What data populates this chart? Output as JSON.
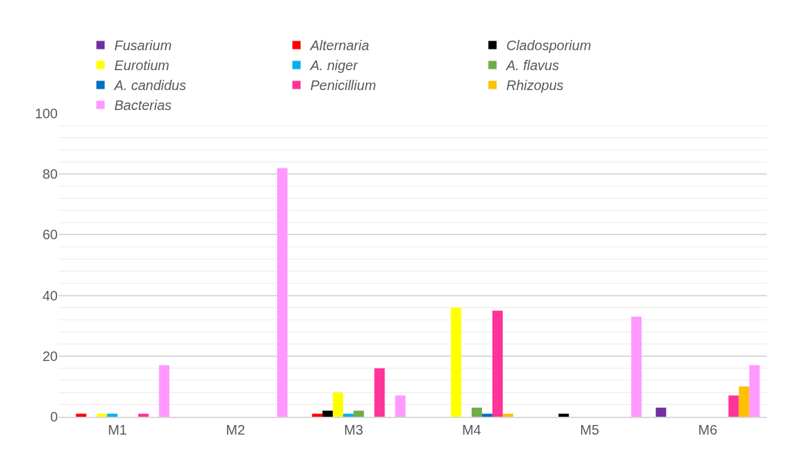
{
  "chart_data": {
    "type": "bar",
    "categories": [
      "M1",
      "M2",
      "M3",
      "M4",
      "M5",
      "M6"
    ],
    "series": [
      {
        "name": "Fusarium",
        "color": "#7030a0",
        "values": [
          0,
          0,
          0,
          0,
          0,
          3
        ]
      },
      {
        "name": "Alternaria",
        "color": "#ff0000",
        "values": [
          1,
          0,
          1,
          0,
          0,
          0
        ]
      },
      {
        "name": "Cladosporium",
        "color": "#000000",
        "values": [
          0,
          0,
          2,
          0,
          1,
          0
        ]
      },
      {
        "name": "Eurotium",
        "color": "#ffff00",
        "values": [
          1,
          0,
          8,
          36,
          0,
          0
        ]
      },
      {
        "name": "A. niger",
        "color": "#00b0f0",
        "values": [
          1,
          0,
          1,
          0,
          0,
          0
        ]
      },
      {
        "name": "A. flavus",
        "color": "#70ad47",
        "values": [
          0,
          0,
          2,
          3,
          0,
          0
        ]
      },
      {
        "name": "A. candidus",
        "color": "#0070c0",
        "values": [
          0,
          0,
          0,
          1,
          0,
          0
        ]
      },
      {
        "name": "Penicillium",
        "color": "#ff3399",
        "values": [
          1,
          0,
          16,
          35,
          0,
          7
        ]
      },
      {
        "name": "Rhizopus",
        "color": "#ffc000",
        "values": [
          0,
          0,
          0,
          1,
          0,
          10
        ]
      },
      {
        "name": "Bacterias",
        "color": "#ff99ff",
        "values": [
          17,
          82,
          7,
          0,
          33,
          17
        ]
      }
    ],
    "ylim": [
      0,
      100
    ],
    "yticks": [
      0,
      {
        "value": 4,
        "label": null
      },
      {
        "value": 8,
        "label": null
      },
      {
        "value": 12,
        "label": null
      },
      {
        "value": 16,
        "label": null
      },
      20,
      {
        "value": 24,
        "label": null
      },
      {
        "value": 28,
        "label": null
      },
      {
        "value": 32,
        "label": null
      },
      {
        "value": 36,
        "label": null
      },
      40,
      {
        "value": 44,
        "label": null
      },
      {
        "value": 48,
        "label": null
      },
      {
        "value": 52,
        "label": null
      },
      {
        "value": 56,
        "label": null
      },
      60,
      {
        "value": 64,
        "label": null
      },
      {
        "value": 68,
        "label": null
      },
      {
        "value": 72,
        "label": null
      },
      {
        "value": 76,
        "label": null
      },
      80,
      {
        "value": 84,
        "label": null
      },
      {
        "value": 88,
        "label": null
      },
      {
        "value": 92,
        "label": null
      },
      {
        "value": 96,
        "label": null
      },
      100
    ],
    "grid": "y",
    "legend": "top"
  }
}
